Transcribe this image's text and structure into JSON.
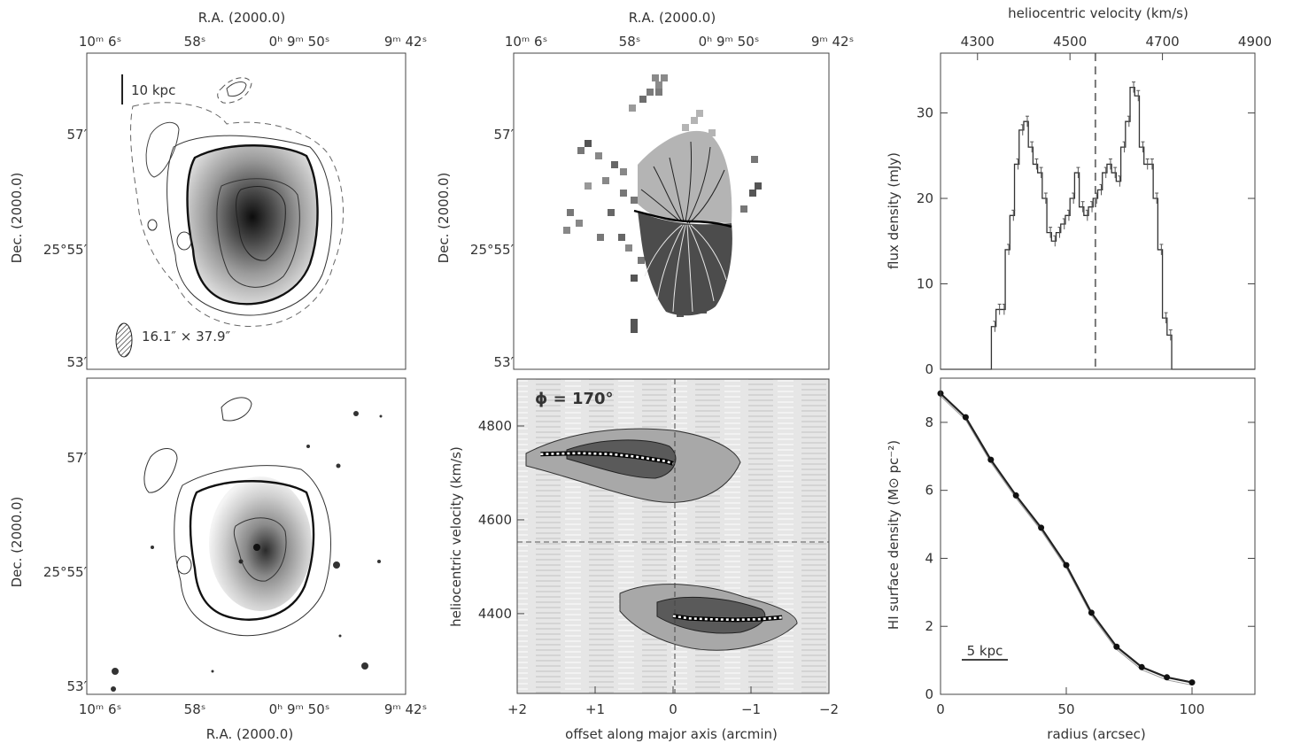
{
  "colors": {
    "ink": "#333333",
    "frame": "#444444",
    "map_dark": "#1a1a1a",
    "field_light": "#d8d8d8"
  },
  "panels": {
    "hi_map": {
      "top_axis_label": "R.A. (2000.0)",
      "top_ticks": [
        "10ᵐ 6ˢ",
        "58ˢ",
        "0ʰ 9ᵐ 50ˢ",
        "9ᵐ 42ˢ"
      ],
      "left_axis_label": "Dec. (2000.0)",
      "left_ticks": [
        "57′",
        "25°55′",
        "53′"
      ],
      "scalebar_label": "10 kpc",
      "beam_label": "16.1″ × 37.9″"
    },
    "velocity_field": {
      "top_axis_label": "R.A. (2000.0)",
      "top_ticks": [
        "10ᵐ 6ˢ",
        "58ˢ",
        "0ʰ 9ᵐ 50ˢ",
        "9ᵐ 42ˢ"
      ],
      "left_axis_label": "Dec. (2000.0)",
      "left_ticks": [
        "57′",
        "25°55′",
        "53′"
      ]
    },
    "optical_overlay": {
      "left_axis_label": "Dec. (2000.0)",
      "left_ticks": [
        "57′",
        "25°55′",
        "53′"
      ],
      "bottom_axis_label": "R.A. (2000.0)",
      "bottom_ticks": [
        "10ᵐ 6ˢ",
        "58ˢ",
        "0ʰ 9ᵐ 50ˢ",
        "9ᵐ 42ˢ"
      ]
    },
    "pv_diagram": {
      "angle_label": "ϕ = 170°"
    }
  },
  "chart_data": [
    {
      "type": "line",
      "panel": "global_profile",
      "top_axis_label": "heliocentric velocity (km/s)",
      "ylabel": "flux density (mJy)",
      "xlim": [
        4220,
        4900
      ],
      "x_ticks": [
        4300,
        4500,
        4700,
        4900
      ],
      "ylim": [
        0,
        37
      ],
      "y_ticks": [
        0,
        10,
        20,
        30
      ],
      "systemic_velocity": 4555,
      "x": [
        4220,
        4260,
        4300,
        4320,
        4330,
        4340,
        4350,
        4360,
        4370,
        4380,
        4390,
        4400,
        4410,
        4420,
        4430,
        4440,
        4450,
        4460,
        4470,
        4480,
        4490,
        4500,
        4510,
        4520,
        4530,
        4540,
        4550,
        4560,
        4570,
        4580,
        4590,
        4600,
        4610,
        4620,
        4630,
        4640,
        4650,
        4660,
        4670,
        4680,
        4690,
        4700,
        4710,
        4720,
        4730,
        4740,
        4750,
        4760,
        4770,
        4780,
        4790,
        4800,
        4840,
        4900
      ],
      "values": [
        0,
        0,
        0,
        0,
        5,
        7,
        7,
        14,
        18,
        24,
        28,
        29,
        26,
        24,
        23,
        20,
        16,
        15,
        16,
        17,
        18,
        20,
        23,
        19,
        18,
        19,
        20,
        21,
        23,
        24,
        23,
        22,
        26,
        29,
        33,
        32,
        26,
        24,
        24,
        20,
        14,
        6,
        4,
        0,
        0,
        0,
        0,
        0,
        0,
        0,
        0,
        0,
        0,
        0
      ]
    },
    {
      "type": "line",
      "panel": "pv_diagram",
      "xlabel": "offset along major axis (arcmin)",
      "ylabel": "heliocentric velocity (km/s)",
      "xlim": [
        2,
        -2
      ],
      "x_ticks": [
        2,
        1,
        0,
        -1,
        -2
      ],
      "x_tick_labels": [
        "+2",
        "+1",
        "0",
        "−1",
        "−2"
      ],
      "ylim": [
        4230,
        4900
      ],
      "y_ticks": [
        4400,
        4600,
        4800
      ],
      "series": [
        {
          "x": [
            1.7,
            1.2,
            0.8,
            0.5,
            0.3,
            0.1,
            0.0
          ],
          "values": [
            4740,
            4742,
            4740,
            4735,
            4730,
            4725,
            4720
          ]
        },
        {
          "x": [
            0.0,
            -0.2,
            -0.5,
            -0.8,
            -1.1,
            -1.4
          ],
          "values": [
            4395,
            4390,
            4388,
            4387,
            4388,
            4392
          ]
        }
      ]
    },
    {
      "type": "line",
      "panel": "surface_density",
      "xlabel": "radius (arcsec)",
      "ylabel": "HI surface density (M⊙ pc⁻²)",
      "xlim": [
        0,
        125
      ],
      "x_ticks": [
        0,
        50,
        100
      ],
      "ylim": [
        0,
        9.3
      ],
      "y_ticks": [
        0,
        2,
        4,
        6,
        8
      ],
      "scalebar_label": "5 kpc",
      "x": [
        0,
        10,
        20,
        30,
        40,
        50,
        60,
        70,
        80,
        90,
        100
      ],
      "values": [
        8.85,
        8.15,
        6.9,
        5.85,
        4.9,
        3.8,
        2.4,
        1.4,
        0.8,
        0.5,
        0.35
      ]
    }
  ]
}
